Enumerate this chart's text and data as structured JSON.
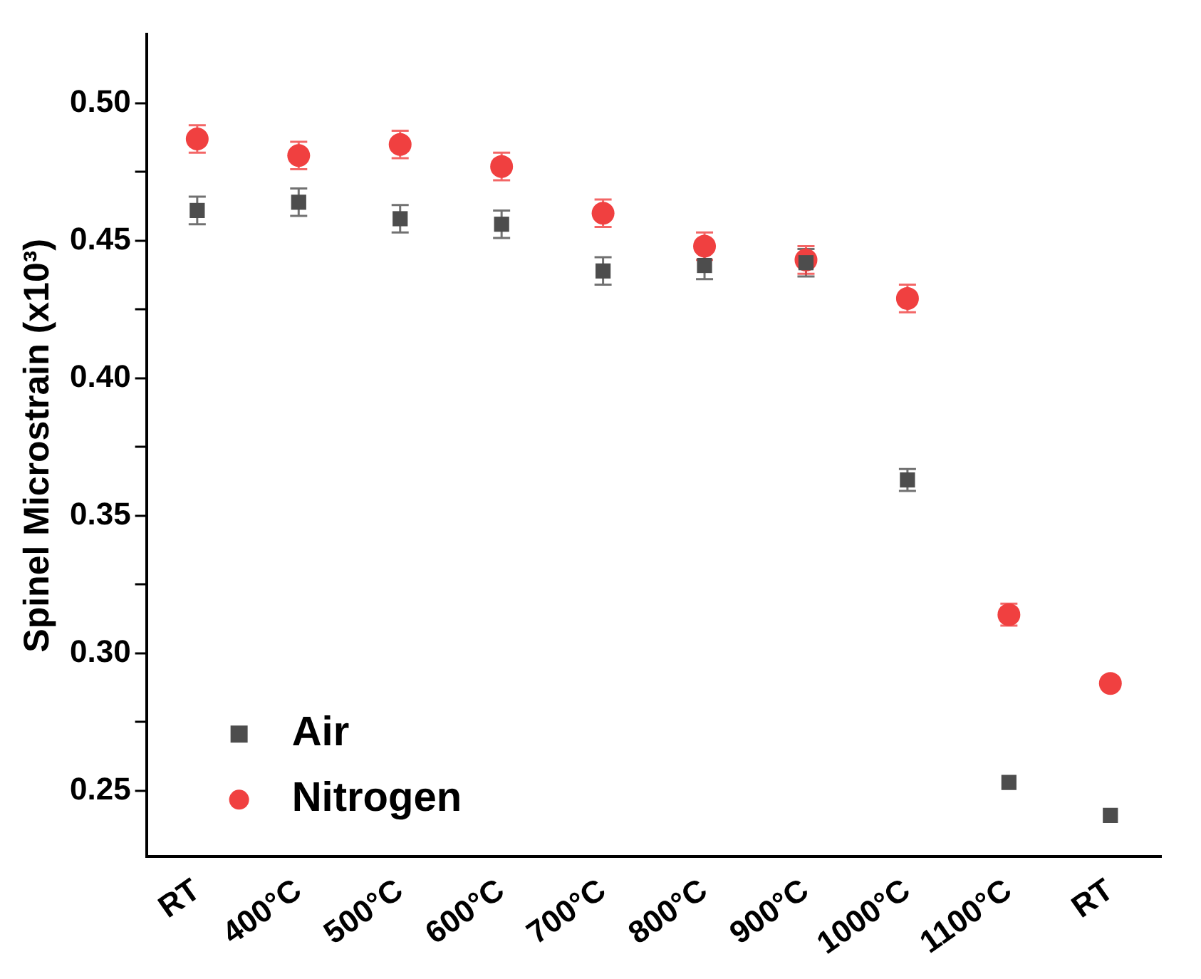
{
  "chart_data": {
    "type": "scatter",
    "ylabel": "Spinel Microstrain (x10³)",
    "categories": [
      "RT",
      "400°C",
      "500°C",
      "600°C",
      "700°C",
      "800°C",
      "900°C",
      "1000°C",
      "1100°C",
      "RT"
    ],
    "series": [
      {
        "name": "Air",
        "color": "#4d4d4d",
        "marker": "square",
        "values": [
          0.461,
          0.464,
          0.458,
          0.456,
          0.439,
          0.441,
          0.442,
          0.363,
          0.253,
          0.241
        ],
        "errors": [
          0.005,
          0.005,
          0.005,
          0.005,
          0.005,
          0.005,
          0.005,
          0.004,
          null,
          null
        ]
      },
      {
        "name": "Nitrogen",
        "color": "#f04040",
        "marker": "circle",
        "values": [
          0.487,
          0.481,
          0.485,
          0.477,
          0.46,
          0.448,
          0.443,
          0.429,
          0.314,
          0.289
        ],
        "errors": [
          0.005,
          0.005,
          0.005,
          0.005,
          0.005,
          0.005,
          0.005,
          0.005,
          0.004,
          null
        ]
      }
    ],
    "ylim": [
      0.226,
      0.525
    ],
    "yticks": [
      {
        "value": 0.25,
        "label": "0.25"
      },
      {
        "value": 0.275,
        "label": null
      },
      {
        "value": 0.3,
        "label": "0.30"
      },
      {
        "value": 0.325,
        "label": null
      },
      {
        "value": 0.35,
        "label": "0.35"
      },
      {
        "value": 0.375,
        "label": null
      },
      {
        "value": 0.4,
        "label": "0.40"
      },
      {
        "value": 0.425,
        "label": null
      },
      {
        "value": 0.45,
        "label": "0.45"
      },
      {
        "value": 0.475,
        "label": null
      },
      {
        "value": 0.5,
        "label": "0.50"
      }
    ],
    "grid": false,
    "legend": "bottom left"
  }
}
